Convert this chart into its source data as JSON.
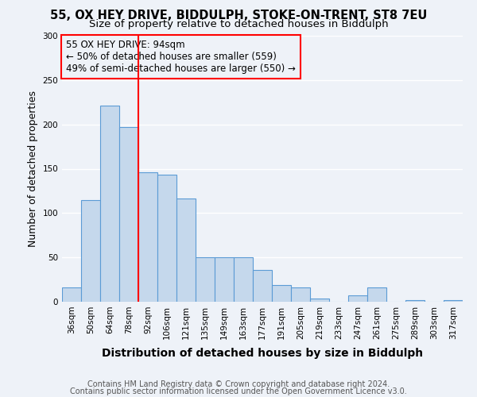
{
  "title_line1": "55, OX HEY DRIVE, BIDDULPH, STOKE-ON-TRENT, ST8 7EU",
  "title_line2": "Size of property relative to detached houses in Biddulph",
  "categories": [
    "36sqm",
    "50sqm",
    "64sqm",
    "78sqm",
    "92sqm",
    "106sqm",
    "121sqm",
    "135sqm",
    "149sqm",
    "163sqm",
    "177sqm",
    "191sqm",
    "205sqm",
    "219sqm",
    "233sqm",
    "247sqm",
    "261sqm",
    "275sqm",
    "289sqm",
    "303sqm",
    "317sqm"
  ],
  "values": [
    16,
    115,
    221,
    197,
    146,
    143,
    116,
    50,
    50,
    50,
    36,
    19,
    16,
    4,
    0,
    7,
    16,
    0,
    2,
    0,
    2
  ],
  "bar_color": "#c5d8ec",
  "bar_edge_color": "#5b9bd5",
  "reference_line_index": 4,
  "reference_line_color": "red",
  "ylabel": "Number of detached properties",
  "xlabel": "Distribution of detached houses by size in Biddulph",
  "ylim": [
    0,
    300
  ],
  "yticks": [
    0,
    50,
    100,
    150,
    200,
    250,
    300
  ],
  "annotation_title": "55 OX HEY DRIVE: 94sqm",
  "annotation_line1": "← 50% of detached houses are smaller (559)",
  "annotation_line2": "49% of semi-detached houses are larger (550) →",
  "annotation_box_color": "red",
  "footer_line1": "Contains HM Land Registry data © Crown copyright and database right 2024.",
  "footer_line2": "Contains public sector information licensed under the Open Government Licence v3.0.",
  "background_color": "#eef2f8",
  "grid_color": "#ffffff",
  "title_fontsize": 10.5,
  "subtitle_fontsize": 9.5,
  "ylabel_fontsize": 9,
  "xlabel_fontsize": 10,
  "tick_fontsize": 7.5,
  "annotation_fontsize": 8.5,
  "footer_fontsize": 7
}
